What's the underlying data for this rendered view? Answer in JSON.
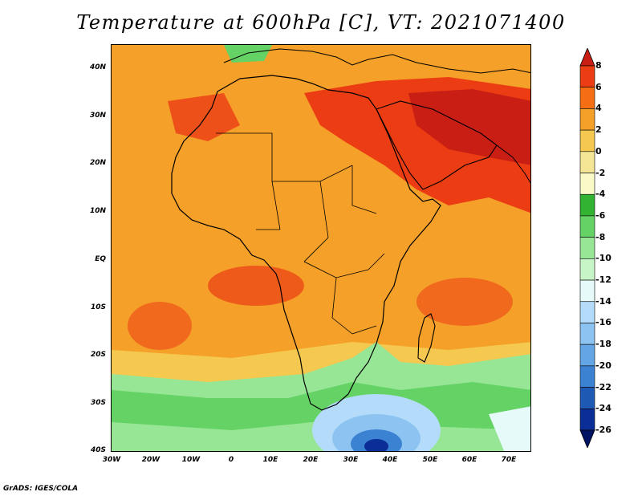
{
  "title": "Temperature at 600hPa [C], VT: 2021071400",
  "credit": "GrADS: IGES/COLA",
  "lat_labels": [
    "40N",
    "30N",
    "20N",
    "10N",
    "EQ",
    "10S",
    "20S",
    "30S",
    "40S"
  ],
  "lon_labels": [
    "30W",
    "20W",
    "10W",
    "0",
    "10E",
    "20E",
    "30E",
    "40E",
    "50E",
    "60E",
    "70E"
  ],
  "colorbar": {
    "labels": [
      "8",
      "6",
      "4",
      "2",
      "0",
      "-2",
      "-4",
      "-6",
      "-8",
      "-10",
      "-12",
      "-14",
      "-16",
      "-18",
      "-20",
      "-22",
      "-24",
      "-26"
    ],
    "colors": [
      "#c81e14",
      "#eb3c14",
      "#f56e14",
      "#f5a028",
      "#f5c850",
      "#f5e696",
      "#fafac8",
      "#32b432",
      "#64d264",
      "#96e696",
      "#c8f5c8",
      "#e6fafa",
      "#b4dcfa",
      "#8cc3f0",
      "#64a5e6",
      "#3c82d2",
      "#1e5ab4",
      "#0a2d96",
      "#001264"
    ]
  }
}
